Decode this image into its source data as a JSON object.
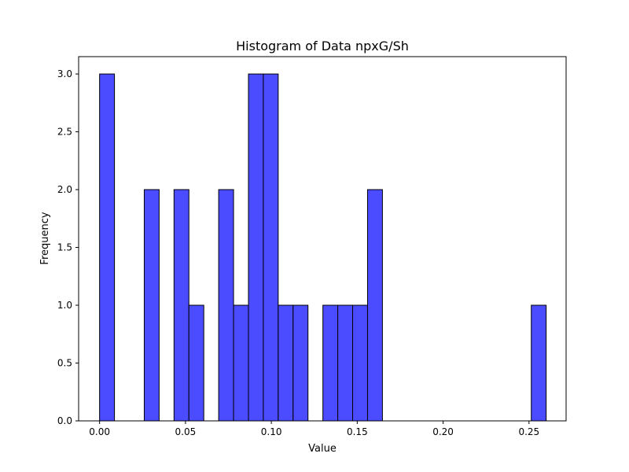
{
  "chart_data": {
    "type": "bar",
    "title": "Histogram of Data npxG/Sh",
    "xlabel": "Value",
    "ylabel": "Frequency",
    "xlim": [
      -0.0122,
      0.2716
    ],
    "ylim": [
      0,
      3.15
    ],
    "x_ticks": [
      0.0,
      0.05,
      0.1,
      0.15,
      0.2,
      0.25
    ],
    "x_tick_labels": [
      "0.00",
      "0.05",
      "0.10",
      "0.15",
      "0.20",
      "0.25"
    ],
    "y_ticks": [
      0.0,
      0.5,
      1.0,
      1.5,
      2.0,
      2.5,
      3.0
    ],
    "y_tick_labels": [
      "0.0",
      "0.5",
      "1.0",
      "1.5",
      "2.0",
      "2.5",
      "3.0"
    ],
    "bin_edges": [
      0.0,
      0.00867,
      0.01733,
      0.026,
      0.03467,
      0.04333,
      0.052,
      0.06067,
      0.06933,
      0.078,
      0.08667,
      0.09533,
      0.104,
      0.11267,
      0.12133,
      0.13,
      0.13867,
      0.14733,
      0.156,
      0.16467,
      0.17333,
      0.182,
      0.19067,
      0.19933,
      0.208,
      0.21667,
      0.22533,
      0.234,
      0.24267,
      0.25133,
      0.26
    ],
    "counts": [
      3,
      0,
      0,
      2,
      0,
      2,
      1,
      0,
      2,
      1,
      3,
      3,
      1,
      1,
      0,
      1,
      1,
      1,
      2,
      0,
      0,
      0,
      0,
      0,
      0,
      0,
      0,
      0,
      0,
      1
    ],
    "bar_color": "#4b4bff",
    "edge_color": "#000000",
    "grid": false,
    "legend": "none"
  }
}
